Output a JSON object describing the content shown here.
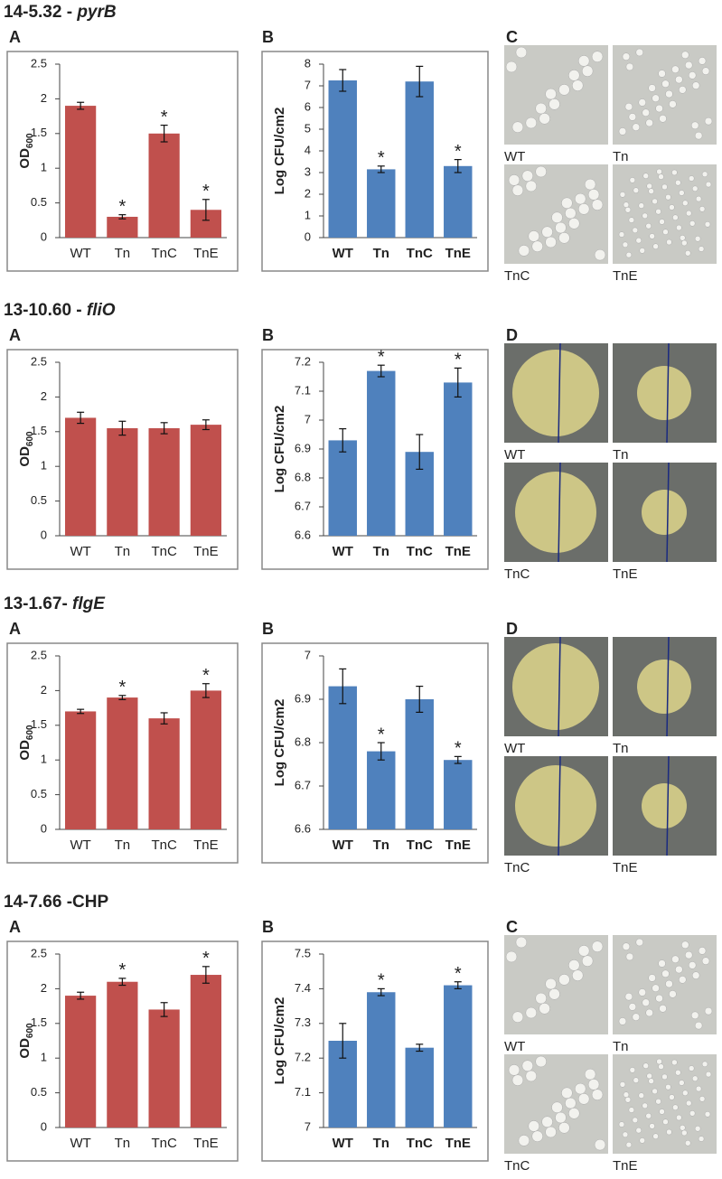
{
  "chart_data": [
    {
      "type": "bar",
      "ylabel": "OD",
      "ylabel_sub": "600",
      "categories": [
        "WT",
        "Tn",
        "TnC",
        "TnE"
      ],
      "values": [
        1.9,
        0.3,
        1.5,
        0.4
      ],
      "errors": [
        0.05,
        0.03,
        0.12,
        0.15
      ],
      "significance": [
        null,
        "*",
        "*",
        "*"
      ],
      "color": "#c0504d",
      "ylim": [
        0,
        2.5
      ],
      "yticks": [
        0,
        0.5,
        1,
        1.5,
        2,
        2.5
      ]
    },
    {
      "type": "bar",
      "ylabel": "Log CFU/cm2",
      "categories": [
        "WT",
        "Tn",
        "TnC",
        "TnE"
      ],
      "values": [
        7.25,
        3.15,
        7.2,
        3.3
      ],
      "errors": [
        0.5,
        0.15,
        0.7,
        0.3
      ],
      "significance": [
        null,
        "*",
        null,
        "*"
      ],
      "color": "#4f81bd",
      "ylim": [
        0,
        8
      ],
      "yticks": [
        0,
        1,
        2,
        3,
        4,
        5,
        6,
        7,
        8
      ]
    },
    {
      "type": "bar",
      "ylabel": "OD",
      "ylabel_sub": "600",
      "categories": [
        "WT",
        "Tn",
        "TnC",
        "TnE"
      ],
      "values": [
        1.7,
        1.55,
        1.55,
        1.6
      ],
      "errors": [
        0.08,
        0.1,
        0.08,
        0.07
      ],
      "significance": [
        null,
        null,
        null,
        null
      ],
      "color": "#c0504d",
      "ylim": [
        0,
        2.5
      ],
      "yticks": [
        0,
        0.5,
        1,
        1.5,
        2,
        2.5
      ]
    },
    {
      "type": "bar",
      "ylabel": "Log CFU/cm2",
      "categories": [
        "WT",
        "Tn",
        "TnC",
        "TnE"
      ],
      "values": [
        6.93,
        7.17,
        6.89,
        7.13
      ],
      "errors": [
        0.04,
        0.02,
        0.06,
        0.05
      ],
      "significance": [
        null,
        "*",
        null,
        "*"
      ],
      "color": "#4f81bd",
      "ylim": [
        6.6,
        7.2
      ],
      "yticks": [
        6.6,
        6.7,
        6.8,
        6.9,
        7,
        7.1,
        7.2
      ]
    },
    {
      "type": "bar",
      "ylabel": "OD",
      "ylabel_sub": "600",
      "categories": [
        "WT",
        "Tn",
        "TnC",
        "TnE"
      ],
      "values": [
        1.7,
        1.9,
        1.6,
        2.0
      ],
      "errors": [
        0.03,
        0.03,
        0.08,
        0.1
      ],
      "significance": [
        null,
        "*",
        null,
        "*"
      ],
      "color": "#c0504d",
      "ylim": [
        0,
        2.5
      ],
      "yticks": [
        0,
        0.5,
        1,
        1.5,
        2,
        2.5
      ]
    },
    {
      "type": "bar",
      "ylabel": "Log CFU/cm2",
      "categories": [
        "WT",
        "Tn",
        "TnC",
        "TnE"
      ],
      "values": [
        6.93,
        6.78,
        6.9,
        6.76
      ],
      "errors": [
        0.04,
        0.02,
        0.03,
        0.008
      ],
      "significance": [
        null,
        "*",
        null,
        "*"
      ],
      "color": "#4f81bd",
      "ylim": [
        6.6,
        7
      ],
      "yticks": [
        6.6,
        6.7,
        6.8,
        6.9,
        7
      ]
    },
    {
      "type": "bar",
      "ylabel": "OD",
      "ylabel_sub": "600",
      "categories": [
        "WT",
        "Tn",
        "TnC",
        "TnE"
      ],
      "values": [
        1.9,
        2.1,
        1.7,
        2.2
      ],
      "errors": [
        0.05,
        0.05,
        0.1,
        0.12
      ],
      "significance": [
        null,
        "*",
        null,
        "*"
      ],
      "color": "#c0504d",
      "ylim": [
        0,
        2.5
      ],
      "yticks": [
        0,
        0.5,
        1,
        1.5,
        2,
        2.5
      ]
    },
    {
      "type": "bar",
      "ylabel": "Log CFU/cm2",
      "categories": [
        "WT",
        "Tn",
        "TnC",
        "TnE"
      ],
      "values": [
        7.25,
        7.39,
        7.23,
        7.41
      ],
      "errors": [
        0.05,
        0.01,
        0.01,
        0.01
      ],
      "significance": [
        null,
        "*",
        null,
        "*"
      ],
      "color": "#4f81bd",
      "ylim": [
        7,
        7.5
      ],
      "yticks": [
        7,
        7.1,
        7.2,
        7.3,
        7.4,
        7.5
      ]
    }
  ],
  "sections": [
    {
      "title": "14-5.32 - ",
      "gene": "pyrB",
      "panels": [
        "A",
        "B",
        "C"
      ],
      "photos": [
        "WT",
        "Tn",
        "TnC",
        "TnE"
      ]
    },
    {
      "title": "13-10.60 - ",
      "gene": "fliO",
      "panels": [
        "A",
        "B",
        "D"
      ],
      "photos": [
        "WT",
        "Tn",
        "TnC",
        "TnE"
      ]
    },
    {
      "title": "13-1.67- ",
      "gene": "flgE",
      "panels": [
        "A",
        "B",
        "D"
      ],
      "photos": [
        "WT",
        "Tn",
        "TnC",
        "TnE"
      ]
    },
    {
      "title": "14-7.66 -CHP",
      "panels": [
        "A",
        "B",
        "C"
      ],
      "photos": [
        "WT",
        "Tn",
        "TnC",
        "TnE"
      ]
    }
  ]
}
